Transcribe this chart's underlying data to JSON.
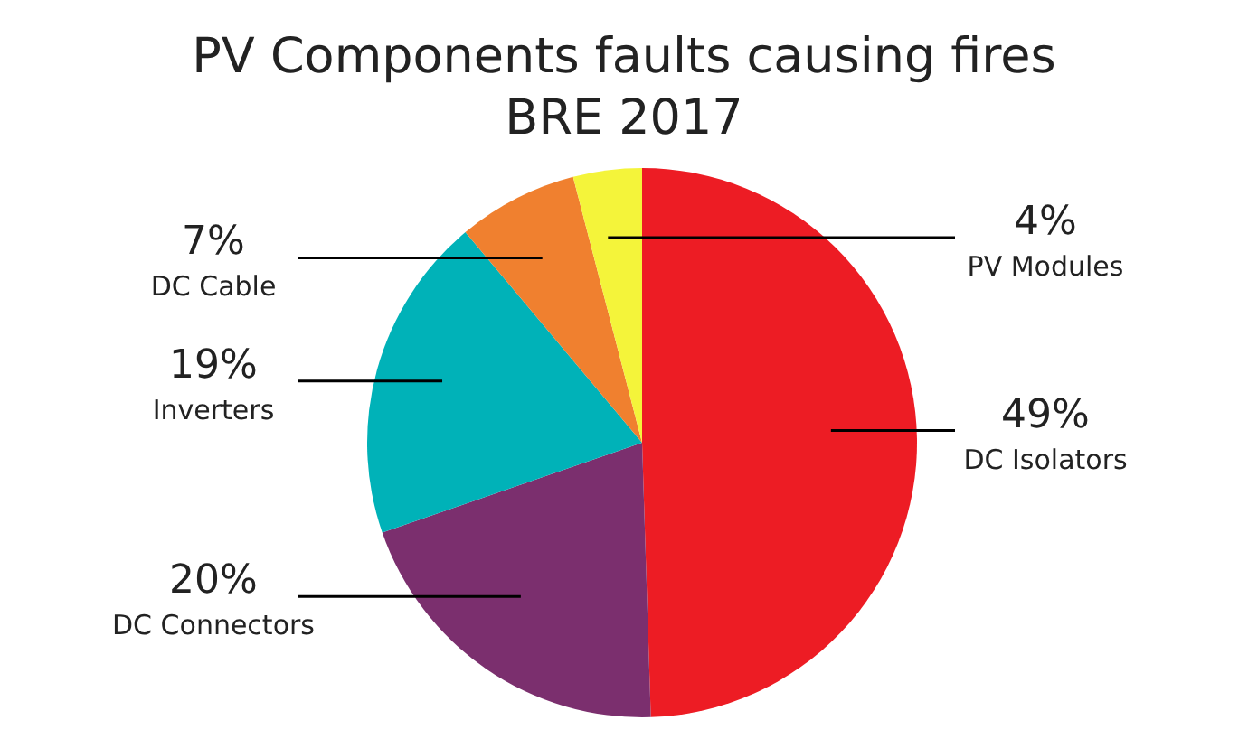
{
  "chart_data": {
    "type": "pie",
    "title": "PV Components faults causing fires\nBRE 2017",
    "categories": [
      "DC Isolators",
      "DC Connectors",
      "Inverters",
      "DC Cable",
      "PV Modules"
    ],
    "values": [
      49,
      20,
      19,
      7,
      4
    ],
    "colors": [
      "#ed1c24",
      "#7b2f6e",
      "#00b2b8",
      "#f0802f",
      "#f4f43a"
    ],
    "value_labels": [
      "49%",
      "20%",
      "19%",
      "7%",
      "4%"
    ],
    "legend": false
  }
}
